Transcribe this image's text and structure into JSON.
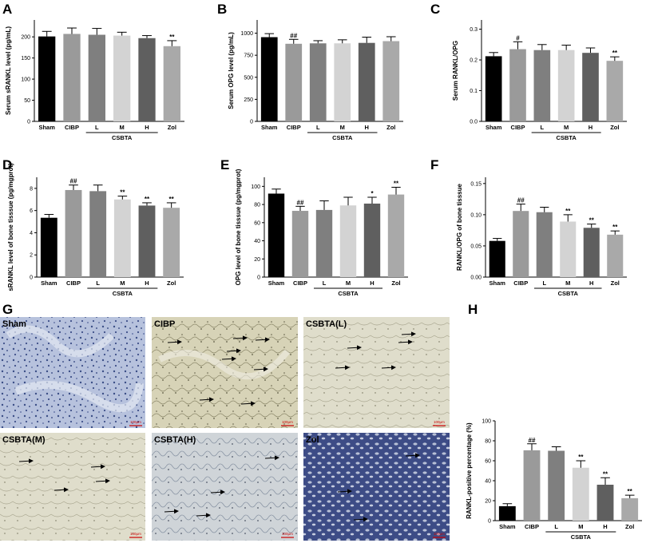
{
  "figure": {
    "panel_letters": [
      "A",
      "B",
      "C",
      "D",
      "E",
      "F",
      "G",
      "H"
    ],
    "micrograph_labels": [
      "Sham",
      "CIBP",
      "CSBTA(L)",
      "CSBTA(M)",
      "CSBTA(H)",
      "Zol"
    ],
    "scale_bar_label": "100μm"
  },
  "chart_data": [
    {
      "id": "A",
      "type": "bar",
      "categories": [
        "Sham",
        "CIBP",
        "L",
        "M",
        "H",
        "Zol"
      ],
      "group_label": "CSBTA",
      "ylabel": "Serum sRANKL level (pg/mL)",
      "ylim": [
        0,
        240
      ],
      "yticks": [
        0,
        50,
        100,
        150,
        200
      ],
      "series": [
        {
          "values": [
            201,
            207,
            205,
            203,
            197,
            178
          ],
          "errors": [
            12,
            14,
            15,
            8,
            6,
            13
          ]
        }
      ],
      "annotations": [
        "",
        "",
        "",
        "",
        "",
        "**"
      ],
      "colors": [
        "#000000",
        "#9a9a9a",
        "#7f7f7f",
        "#d3d3d3",
        "#5f5f5f",
        "#a9a9a9"
      ]
    },
    {
      "id": "B",
      "type": "bar",
      "categories": [
        "Sham",
        "CIBP",
        "L",
        "M",
        "H",
        "Zol"
      ],
      "group_label": "CSBTA",
      "ylabel": "Serum OPG level (pg/mL)",
      "ylim": [
        0,
        1150
      ],
      "yticks": [
        0,
        250,
        500,
        750,
        1000
      ],
      "series": [
        {
          "values": [
            955,
            880,
            885,
            885,
            890,
            910
          ],
          "errors": [
            40,
            50,
            30,
            40,
            65,
            50
          ]
        }
      ],
      "annotations": [
        "",
        "##",
        "",
        "",
        "",
        ""
      ],
      "colors": [
        "#000000",
        "#9a9a9a",
        "#7f7f7f",
        "#d3d3d3",
        "#5f5f5f",
        "#a9a9a9"
      ]
    },
    {
      "id": "C",
      "type": "bar",
      "categories": [
        "Sham",
        "CIBP",
        "L",
        "M",
        "H",
        "Zol"
      ],
      "group_label": "CSBTA",
      "ylabel": "Serum RANKL/OPG",
      "ylim": [
        0,
        0.33
      ],
      "yticks": [
        0.0,
        0.1,
        0.2,
        0.3
      ],
      "series": [
        {
          "values": [
            0.212,
            0.235,
            0.232,
            0.232,
            0.223,
            0.197
          ],
          "errors": [
            0.012,
            0.024,
            0.018,
            0.016,
            0.016,
            0.013
          ]
        }
      ],
      "annotations": [
        "",
        "#",
        "",
        "",
        "",
        "**"
      ],
      "colors": [
        "#000000",
        "#9a9a9a",
        "#7f7f7f",
        "#d3d3d3",
        "#5f5f5f",
        "#a9a9a9"
      ]
    },
    {
      "id": "D",
      "type": "bar",
      "categories": [
        "Sham",
        "CIBP",
        "L",
        "M",
        "H",
        "Zol"
      ],
      "group_label": "CSBTA",
      "ylabel": "sRANKL level of bone tisssue (pg/mgprot)",
      "ylim": [
        0,
        9
      ],
      "yticks": [
        0,
        2,
        4,
        6,
        8
      ],
      "series": [
        {
          "values": [
            5.35,
            7.85,
            7.75,
            7.0,
            6.45,
            6.25
          ],
          "errors": [
            0.3,
            0.45,
            0.55,
            0.3,
            0.25,
            0.45
          ]
        }
      ],
      "annotations": [
        "",
        "##",
        "",
        "**",
        "**",
        "**"
      ],
      "colors": [
        "#000000",
        "#9a9a9a",
        "#7f7f7f",
        "#d3d3d3",
        "#5f5f5f",
        "#a9a9a9"
      ]
    },
    {
      "id": "E",
      "type": "bar",
      "categories": [
        "Sham",
        "CIBP",
        "L",
        "M",
        "H",
        "Zol"
      ],
      "group_label": "CSBTA",
      "ylabel": "OPG level of bone tisssue (pg/mgprot)",
      "ylim": [
        0,
        110
      ],
      "yticks": [
        0,
        20,
        40,
        60,
        80,
        100
      ],
      "series": [
        {
          "values": [
            92,
            73,
            74,
            79,
            81,
            91
          ],
          "errors": [
            5,
            5,
            10,
            9,
            7,
            8
          ]
        }
      ],
      "annotations": [
        "",
        "##",
        "",
        "",
        "*",
        "**"
      ],
      "colors": [
        "#000000",
        "#9a9a9a",
        "#7f7f7f",
        "#d3d3d3",
        "#5f5f5f",
        "#a9a9a9"
      ]
    },
    {
      "id": "F",
      "type": "bar",
      "categories": [
        "Sham",
        "CIBP",
        "L",
        "M",
        "H",
        "Zol"
      ],
      "group_label": "CSBTA",
      "ylabel": "RANKL/OPG of bone tisssue",
      "ylim": [
        0,
        0.16
      ],
      "yticks": [
        0.0,
        0.05,
        0.1,
        0.15
      ],
      "series": [
        {
          "values": [
            0.058,
            0.106,
            0.104,
            0.089,
            0.079,
            0.068
          ],
          "errors": [
            0.004,
            0.011,
            0.008,
            0.011,
            0.006,
            0.006
          ]
        }
      ],
      "annotations": [
        "",
        "##",
        "",
        "**",
        "**",
        "**"
      ],
      "colors": [
        "#000000",
        "#9a9a9a",
        "#7f7f7f",
        "#d3d3d3",
        "#5f5f5f",
        "#a9a9a9"
      ]
    },
    {
      "id": "H",
      "type": "bar",
      "categories": [
        "Sham",
        "CIBP",
        "L",
        "M",
        "H",
        "Zol"
      ],
      "group_label": "CSBTA",
      "ylabel": "RANKL-positive percentage (%)",
      "ylim": [
        0,
        100
      ],
      "yticks": [
        0,
        20,
        40,
        60,
        80,
        100
      ],
      "series": [
        {
          "values": [
            14.5,
            70.5,
            70,
            53,
            36,
            22.5
          ],
          "errors": [
            2.5,
            6.5,
            4,
            7,
            7,
            3
          ]
        }
      ],
      "annotations": [
        "",
        "##",
        "",
        "**",
        "**",
        "**"
      ],
      "colors": [
        "#000000",
        "#9a9a9a",
        "#7f7f7f",
        "#d3d3d3",
        "#5f5f5f",
        "#a9a9a9"
      ]
    }
  ]
}
